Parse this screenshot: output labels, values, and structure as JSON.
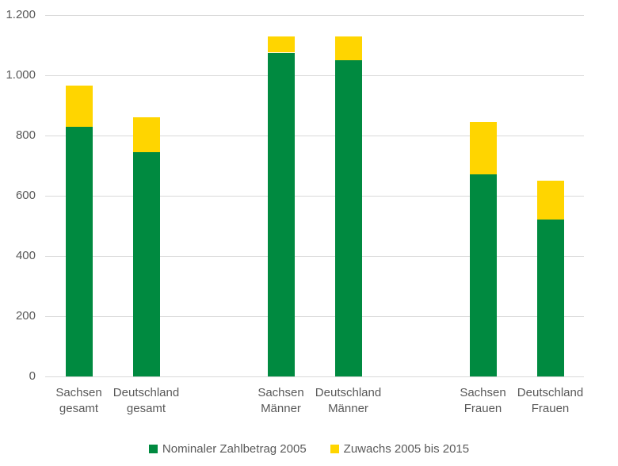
{
  "chart_data": {
    "type": "bar",
    "stacked": true,
    "orientation": "vertical",
    "title": "",
    "xlabel": "",
    "ylabel": "",
    "ylim": [
      0,
      1200
    ],
    "ytick_step": 200,
    "ytick_labels": [
      "0",
      "200",
      "400",
      "600",
      "800",
      "1.000",
      "1.200"
    ],
    "grid": true,
    "legend_position": "bottom",
    "categories": [
      "Sachsen gesamt",
      "Deutschland gesamt",
      null,
      "Sachsen Männer",
      "Deutschland Männer",
      null,
      "Sachsen Frauen",
      "Deutschland Frauen"
    ],
    "series": [
      {
        "name": "Nominaler Zahlbetrag 2005",
        "color": "#008A40",
        "values": [
          830,
          745,
          null,
          1075,
          1050,
          null,
          670,
          520
        ]
      },
      {
        "name": "Zuwachs 2005 bis 2015",
        "color": "#FFD500",
        "values": [
          135,
          115,
          null,
          55,
          80,
          null,
          175,
          130
        ]
      }
    ],
    "stack_totals": [
      965,
      860,
      null,
      1130,
      1130,
      null,
      845,
      650
    ]
  },
  "colors": {
    "gridline": "#d9d9d9",
    "axis_text": "#595959",
    "background": "#ffffff"
  }
}
